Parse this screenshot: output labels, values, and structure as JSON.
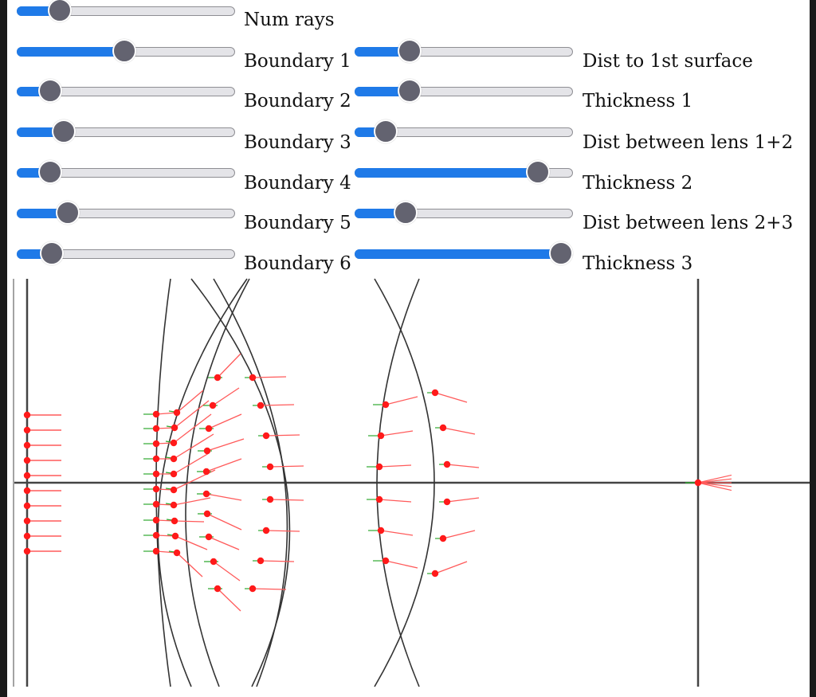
{
  "controls": {
    "left": [
      {
        "label": "Num rays",
        "value": 0.16
      },
      {
        "label": "Boundary 1",
        "value": 0.49
      },
      {
        "label": "Boundary 2",
        "value": 0.11
      },
      {
        "label": "Boundary 3",
        "value": 0.18
      },
      {
        "label": "Boundary 4",
        "value": 0.11
      },
      {
        "label": "Boundary 5",
        "value": 0.2
      },
      {
        "label": "Boundary 6",
        "value": 0.12
      }
    ],
    "right": [
      {
        "label": "Dist to 1st surface",
        "value": 0.22
      },
      {
        "label": "Thickness 1",
        "value": 0.22
      },
      {
        "label": "Dist between lens 1+2",
        "value": 0.1
      },
      {
        "label": "Thickness 2",
        "value": 0.88
      },
      {
        "label": "Dist between lens 2+3",
        "value": 0.2
      },
      {
        "label": "Thickness 3",
        "value": 1.0
      }
    ]
  },
  "colors": {
    "accent": "#1f7ae8",
    "thumb": "#636370",
    "track": "#e4e4e8",
    "ray": "#ff5a5a",
    "point": "#ff1a1a",
    "normal": "#2fa82f",
    "lens_line": "#333333"
  }
}
